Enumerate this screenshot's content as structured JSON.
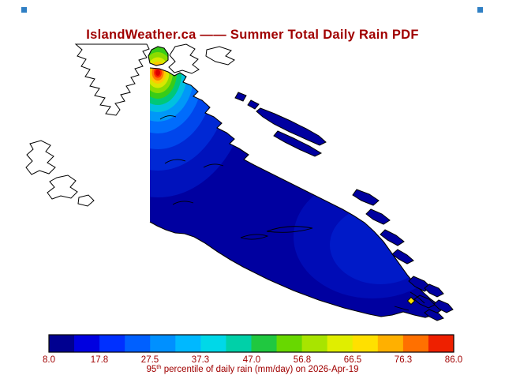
{
  "title": "IslandWeather.ca —— Summer Total Daily Rain PDF",
  "colors": {
    "text": "#a00000",
    "coastline": "#000000",
    "sea_background": "#ffffff",
    "base_fill": "#0000a0",
    "corner_mark": "#2f7fc4",
    "station_marker": "#ffe000"
  },
  "colorbar": {
    "min": "8.0",
    "max": "86.0",
    "ticks": [
      "8.0",
      "17.8",
      "27.5",
      "37.3",
      "47.0",
      "56.8",
      "66.5",
      "76.3",
      "86.0"
    ],
    "cells": [
      "#000090",
      "#0000e0",
      "#0030ff",
      "#0060ff",
      "#0090ff",
      "#00b8ff",
      "#00d8e8",
      "#00d0a8",
      "#20c840",
      "#68d800",
      "#a8e400",
      "#e0ee00",
      "#ffe000",
      "#ffb000",
      "#ff7000",
      "#ee2000"
    ]
  },
  "caption": {
    "prefix": "95",
    "superscript": "th",
    "rest": " percentile of daily rain (mm/day) on 2026-Apr-19"
  },
  "chart_data": {
    "type": "heatmap",
    "title": "IslandWeather.ca —— Summer Total Daily Rain PDF",
    "caption": "95th percentile of daily rain (mm/day) on 2026-Apr-19",
    "units": "mm/day",
    "value_min": 8.0,
    "value_max": 86.0,
    "colorbar_tick_values": [
      8.0,
      17.8,
      27.5,
      37.3,
      47.0,
      56.8,
      66.5,
      76.3,
      86.0
    ],
    "legend_position": "bottom",
    "description": "Filled-contour rain map over a large diagonal island; most of the island sits at the low end of the scale (~8-20 mm/day, dark blue) with a slightly lighter blue zone in the southeast, and a localized maximum reaching the top of the scale (~86 mm/day, red core ringed by orange, yellow, green and cyan) on the northwest coast. Mainland and neighbouring coastlines are drawn as unfilled black outlines; small offshore islands are filled dark blue. A small yellow diamond marker sits near the southeast tip."
  }
}
